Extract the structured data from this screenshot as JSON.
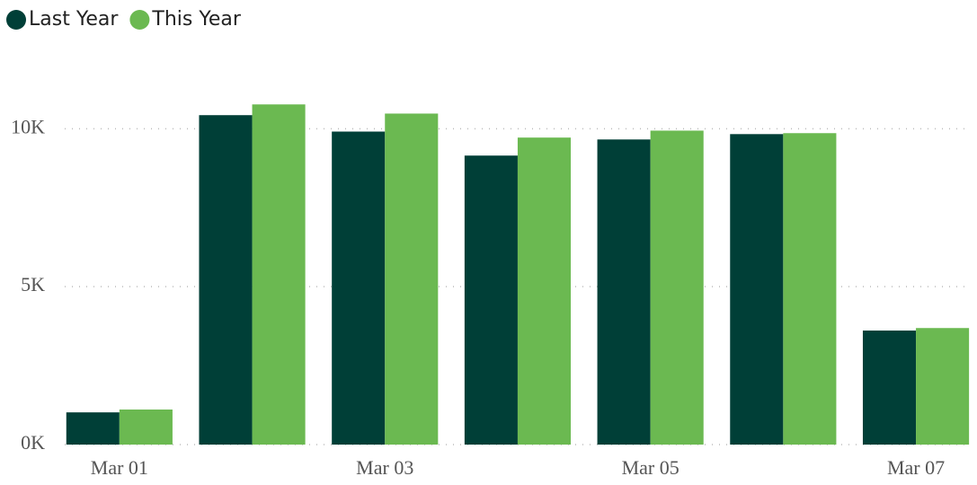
{
  "chart_data": {
    "type": "bar",
    "categories": [
      "Mar 01",
      null,
      "Mar 03",
      null,
      "Mar 05",
      null,
      "Mar 07"
    ],
    "series": [
      {
        "name": "Last Year",
        "color": "#003f37",
        "values": [
          1020,
          10430,
          9910,
          9150,
          9660,
          9830,
          3610
        ]
      },
      {
        "name": "This Year",
        "color": "#6bb951",
        "values": [
          1110,
          10770,
          10480,
          9720,
          9940,
          9860,
          3690
        ]
      }
    ],
    "ylim": [
      0,
      12000
    ],
    "yticks": [
      {
        "value": 0,
        "label": "0K"
      },
      {
        "value": 5000,
        "label": "5K"
      },
      {
        "value": 10000,
        "label": "10K"
      }
    ],
    "grid": true
  }
}
